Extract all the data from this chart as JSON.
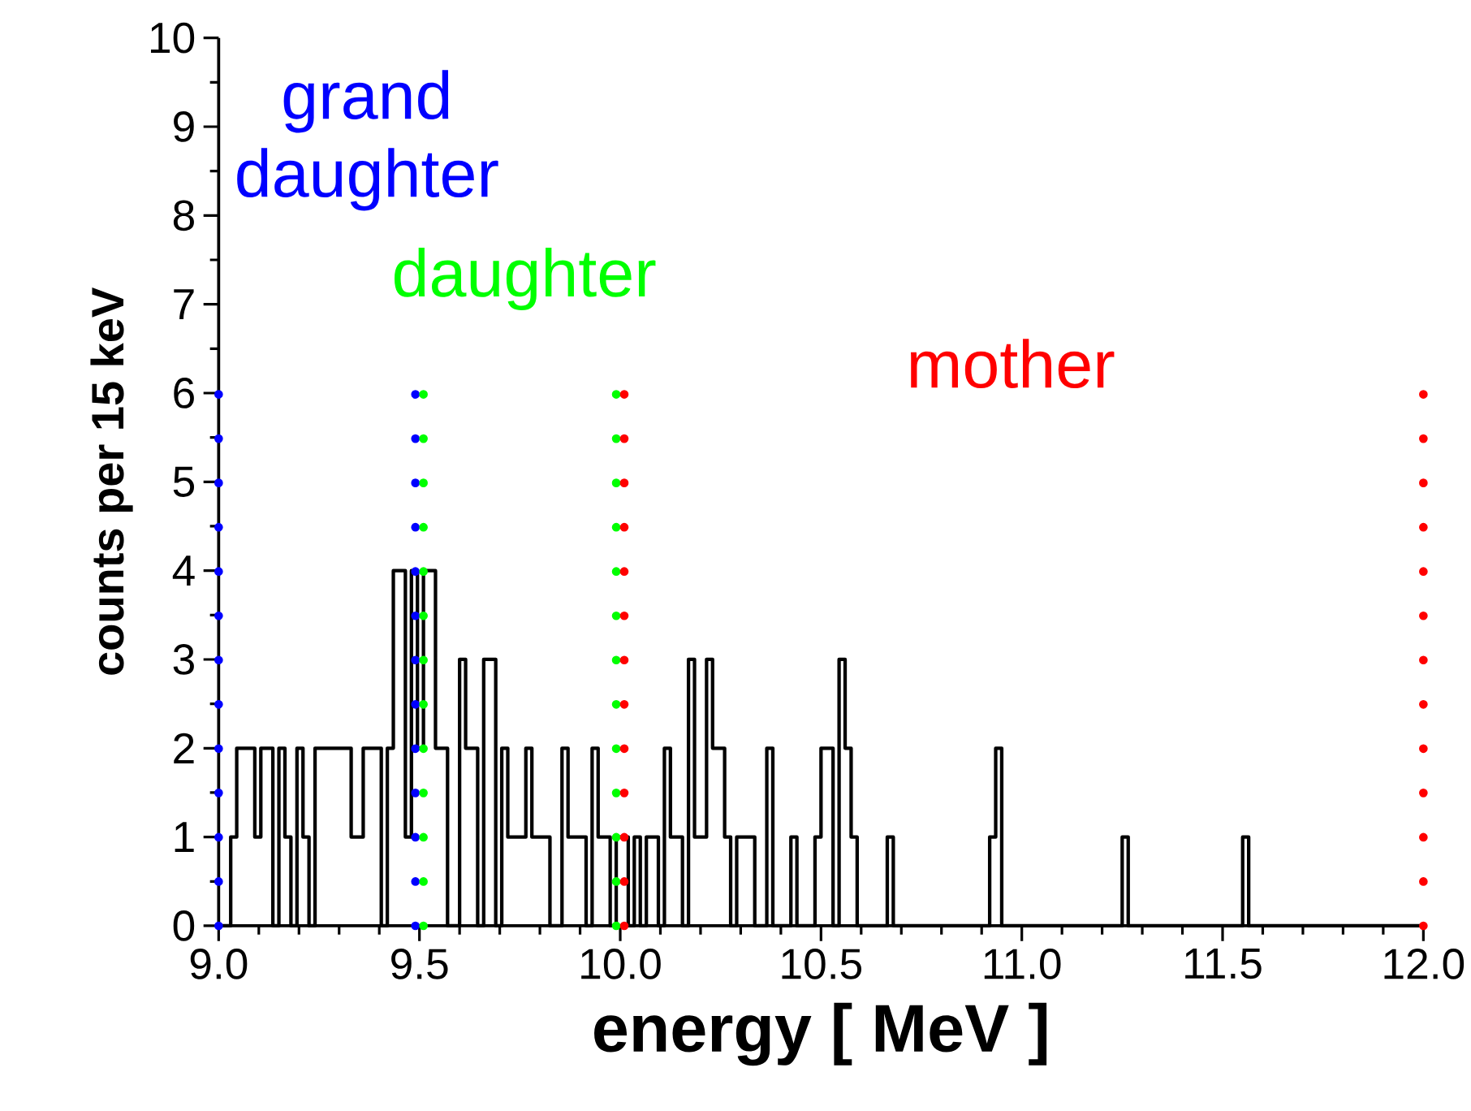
{
  "chart_data": {
    "type": "histogram",
    "xlabel": "energy [ MeV ]",
    "ylabel": "counts per 15 keV",
    "color": "#000000",
    "bins": [
      9,
      9.015,
      9.03,
      9.045,
      9.06,
      9.075,
      9.09,
      9.105,
      9.12,
      9.135,
      9.15,
      9.165,
      9.18,
      9.195,
      9.21,
      9.225,
      9.24,
      9.255,
      9.27,
      9.285,
      9.3,
      9.315,
      9.33,
      9.345,
      9.36,
      9.375,
      9.39,
      9.405,
      9.42,
      9.435,
      9.45,
      9.465,
      9.48,
      9.495,
      9.51,
      9.525,
      9.54,
      9.555,
      9.57,
      9.585,
      9.6,
      9.615,
      9.63,
      9.645,
      9.66,
      9.675,
      9.69,
      9.705,
      9.72,
      9.735,
      9.75,
      9.765,
      9.78,
      9.795,
      9.81,
      9.825,
      9.84,
      9.855,
      9.87,
      9.885,
      9.9,
      9.915,
      9.93,
      9.945,
      9.96,
      9.975,
      9.99,
      10.005,
      10.02,
      10.035,
      10.05,
      10.065,
      10.08,
      10.095,
      10.11,
      10.125,
      10.14,
      10.155,
      10.17,
      10.185,
      10.2,
      10.215,
      10.23,
      10.245,
      10.26,
      10.275,
      10.29,
      10.305,
      10.32,
      10.335,
      10.35,
      10.365,
      10.38,
      10.395,
      10.41,
      10.425,
      10.44,
      10.455,
      10.47,
      10.485,
      10.5,
      10.515,
      10.53,
      10.545,
      10.56,
      10.575,
      10.59,
      10.605,
      10.62,
      10.635,
      10.65,
      10.665,
      10.68,
      10.695,
      10.71,
      10.725,
      10.74,
      10.755,
      10.77,
      10.785,
      10.8,
      10.815,
      10.83,
      10.845,
      10.86,
      10.875,
      10.89,
      10.905,
      10.92,
      10.935,
      10.95,
      10.965,
      10.98,
      10.995,
      11.01,
      11.025,
      11.04,
      11.055,
      11.07,
      11.085,
      11.1,
      11.115,
      11.13,
      11.145,
      11.16,
      11.175,
      11.19,
      11.205,
      11.22,
      11.235,
      11.25,
      11.265,
      11.28,
      11.295,
      11.31,
      11.325,
      11.34,
      11.355,
      11.37,
      11.385,
      11.4,
      11.415,
      11.43,
      11.445,
      11.46,
      11.475,
      11.49,
      11.505,
      11.52,
      11.535,
      11.55,
      11.565,
      11.58,
      11.595,
      11.61,
      11.625,
      11.64,
      11.655,
      11.67,
      11.685,
      11.7,
      11.715,
      11.73,
      11.745,
      11.76,
      11.775,
      11.79,
      11.805,
      11.82,
      11.835,
      11.85,
      11.865,
      11.88,
      11.895,
      11.91,
      11.925,
      11.94,
      11.955,
      11.97,
      11.985,
      12
    ],
    "values": [
      0,
      0,
      1,
      2,
      2,
      2,
      1,
      2,
      2,
      0,
      2,
      1,
      0,
      2,
      1,
      0,
      2,
      2,
      2,
      2,
      2,
      2,
      1,
      1,
      2,
      2,
      2,
      0,
      2,
      4,
      4,
      1,
      4,
      2,
      4,
      4,
      2,
      2,
      0,
      0,
      3,
      2,
      2,
      0,
      3,
      3,
      0,
      2,
      1,
      1,
      1,
      2,
      1,
      1,
      1,
      0,
      0,
      2,
      1,
      1,
      1,
      0,
      2,
      1,
      1,
      0,
      1,
      1,
      0,
      1,
      0,
      1,
      1,
      0,
      2,
      1,
      1,
      0,
      3,
      1,
      1,
      3,
      2,
      2,
      1,
      0,
      1,
      1,
      1,
      0,
      0,
      2,
      0,
      0,
      0,
      1,
      0,
      0,
      0,
      1,
      2,
      2,
      0,
      3,
      2,
      1,
      0,
      0,
      0,
      0,
      0,
      1,
      0,
      0,
      0,
      0,
      0,
      0,
      0,
      0,
      0,
      0,
      0,
      0,
      0,
      0,
      0,
      0,
      1,
      2,
      0,
      0,
      0,
      0,
      0,
      0,
      0,
      0,
      0,
      0,
      0,
      0,
      0,
      0,
      0,
      0,
      0,
      0,
      0,
      0,
      1,
      0,
      0,
      0,
      0,
      0,
      0,
      0,
      0,
      0,
      0,
      0,
      0,
      0,
      0,
      0,
      0,
      0,
      0,
      0,
      1,
      0,
      0,
      0,
      0,
      0,
      0,
      0,
      0,
      0,
      0,
      0,
      0,
      0,
      0,
      0,
      0,
      0,
      0,
      0,
      0,
      0,
      0,
      0,
      0,
      0,
      0,
      0,
      0,
      0
    ],
    "series": [
      {
        "name": "grand daughter",
        "type": "line",
        "line_style": "dotted",
        "color": "#0000ff",
        "x": [
          9.0,
          9.0,
          9.2,
          9.49,
          9.49
        ],
        "values": [
          0,
          6,
          null,
          0,
          6
        ]
      },
      {
        "name": "daughter",
        "type": "line",
        "line_style": "dotted",
        "color": "#00ff00",
        "x": [
          9.51,
          9.51,
          9.7,
          9.99,
          9.99
        ],
        "values": [
          0,
          6,
          null,
          0,
          6
        ]
      },
      {
        "name": "mother",
        "type": "line",
        "line_style": "dotted",
        "color": "#ff0000",
        "x": [
          10.01,
          10.01,
          11.0,
          12.0,
          12.0
        ],
        "values": [
          0,
          6,
          null,
          0,
          6
        ]
      }
    ],
    "xlim": [
      9,
      12
    ],
    "xticks": [
      {
        "value": 9,
        "label": "9.0"
      },
      {
        "value": 9.5,
        "label": "9.5"
      },
      {
        "value": 10,
        "label": "10.0"
      },
      {
        "value": 10.5,
        "label": "10.5"
      },
      {
        "value": 11,
        "label": "11.0"
      },
      {
        "value": 11.5,
        "label": "11.5"
      },
      {
        "value": 12,
        "label": "12.0"
      }
    ],
    "ylim": [
      0,
      10
    ],
    "yticks": [
      0,
      1,
      2,
      3,
      4,
      5,
      6,
      7,
      8,
      9,
      10
    ]
  }
}
